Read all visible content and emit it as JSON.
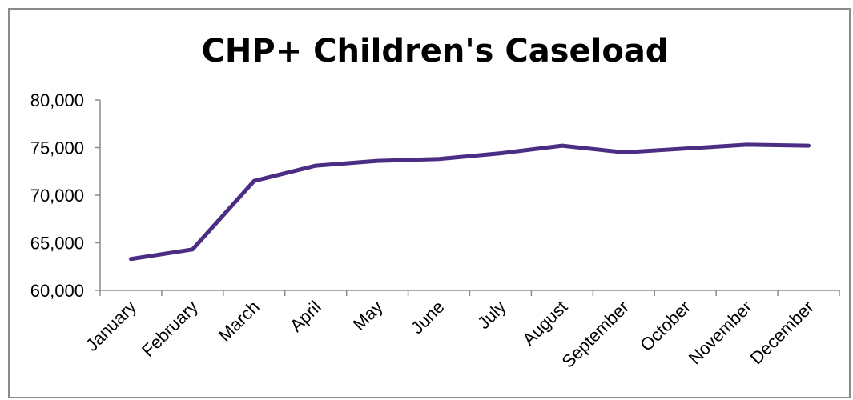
{
  "chart_data": {
    "type": "line",
    "title": "CHP+ Children's Caseload",
    "xlabel": "",
    "ylabel": "",
    "categories": [
      "January",
      "February",
      "March",
      "April",
      "May",
      "June",
      "July",
      "August",
      "September",
      "October",
      "November",
      "December"
    ],
    "series": [
      {
        "values": [
          63300,
          64300,
          71500,
          73100,
          73600,
          73800,
          74400,
          75200,
          74500,
          74900,
          75300,
          75200
        ],
        "color": "#4b2d83"
      }
    ],
    "ylim": [
      60000,
      80000
    ],
    "yticks": [
      60000,
      65000,
      70000,
      75000,
      80000
    ],
    "ytick_labels": [
      "60,000",
      "65,000",
      "70,000",
      "75,000",
      "80,000"
    ],
    "grid": false,
    "legend": "none"
  }
}
